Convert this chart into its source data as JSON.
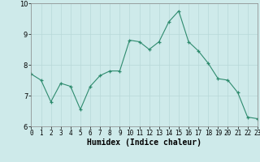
{
  "x": [
    0,
    1,
    2,
    3,
    4,
    5,
    6,
    7,
    8,
    9,
    10,
    11,
    12,
    13,
    14,
    15,
    16,
    17,
    18,
    19,
    20,
    21,
    22,
    23
  ],
  "y": [
    7.7,
    7.5,
    6.8,
    7.4,
    7.3,
    6.55,
    7.3,
    7.65,
    7.8,
    7.8,
    8.8,
    8.75,
    8.5,
    8.75,
    9.4,
    9.75,
    8.75,
    8.45,
    8.05,
    7.55,
    7.5,
    7.1,
    6.3,
    6.25
  ],
  "xlabel": "Humidex (Indice chaleur)",
  "ylim": [
    6,
    10
  ],
  "xlim": [
    0,
    23
  ],
  "yticks": [
    6,
    7,
    8,
    9,
    10
  ],
  "xticks": [
    0,
    1,
    2,
    3,
    4,
    5,
    6,
    7,
    8,
    9,
    10,
    11,
    12,
    13,
    14,
    15,
    16,
    17,
    18,
    19,
    20,
    21,
    22,
    23
  ],
  "line_color": "#2e8b6e",
  "marker_color": "#2e8b6e",
  "bg_color": "#ceeaea",
  "grid_color": "#b8d8d8",
  "xlabel_fontsize": 7.0,
  "tick_fontsize": 5.5
}
